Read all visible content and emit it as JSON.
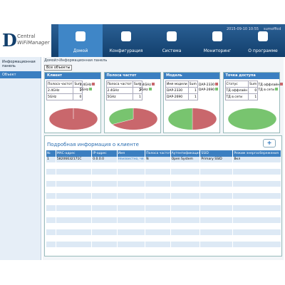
{
  "header": {
    "logo": "D",
    "product_line1": "Central",
    "product_line2": "WiFiManager",
    "datetime": "2015-09-10 10:55",
    "user": "sumofficd"
  },
  "nav": [
    "Домой",
    "Конфигурация",
    "Система",
    "Мониторинг",
    "О программе"
  ],
  "sidebar": [
    "Информационная панель",
    "Объект"
  ],
  "breadcrumb": "Домой>Информационная панель",
  "filter": "Все объекты",
  "pie_colors": [
    "#c9676c",
    "#78c46f"
  ],
  "cards": [
    {
      "title": "Клиент",
      "columns": [
        "Полоса частот",
        "Sum"
      ],
      "rows": [
        {
          "label": "2.4GHz",
          "value": 1
        },
        {
          "label": "5GHz",
          "value": 0
        }
      ]
    },
    {
      "title": "Полоса частот",
      "columns": [
        "Полоса частот",
        "Sum"
      ],
      "rows": [
        {
          "label": "2.4GHz",
          "value": 2
        },
        {
          "label": "5GHz",
          "value": 1
        }
      ]
    },
    {
      "title": "Модель",
      "columns": [
        "Имя модели",
        "Sum"
      ],
      "rows": [
        {
          "label": "DAP-2330",
          "value": 1
        },
        {
          "label": "DAP-2690",
          "value": 1
        }
      ]
    },
    {
      "title": "Точка доступа",
      "columns": [
        "Статус",
        "Sum"
      ],
      "rows": [
        {
          "label": "ТД оффлайн",
          "value": 0
        },
        {
          "label": "ТД в сети",
          "value": 1
        }
      ]
    }
  ],
  "clients": {
    "title": "Подробная информация о клиенте",
    "add_button": "+",
    "columns": [
      "№",
      "MAC-адрес",
      "IP-адрес",
      "Имя",
      "Полоса частот",
      "Аутентификация",
      "SSID",
      "Режим энергосбережения"
    ],
    "rows": [
      [
        "1",
        "58206632171C",
        "0.0.0.0",
        "Неизвестно, че...",
        "N",
        "Open System",
        "Primary SSID",
        "Вкл"
      ]
    ]
  }
}
